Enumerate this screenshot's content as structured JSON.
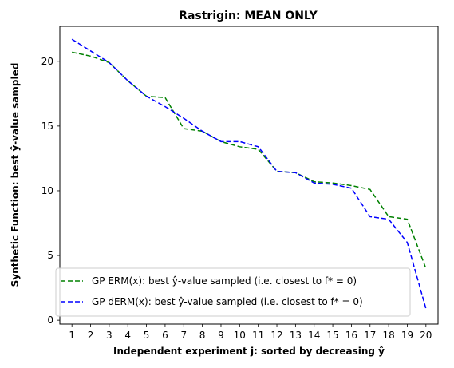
{
  "chart_data": {
    "type": "line",
    "title": "Rastrigin: MEAN ONLY",
    "xlabel": "Independent experiment j: sorted by decreasing ŷ",
    "ylabel": "Synthetic Function: best ŷ-value sampled",
    "x": [
      1,
      2,
      3,
      4,
      5,
      6,
      7,
      8,
      9,
      10,
      11,
      12,
      13,
      14,
      15,
      16,
      17,
      18,
      19,
      20
    ],
    "xlim": [
      0.35,
      20.65
    ],
    "ylim": [
      -0.3,
      22.7
    ],
    "yticks": [
      0,
      5,
      10,
      15,
      20
    ],
    "grid": false,
    "legend_position": "lower-left",
    "series": [
      {
        "name": "GP ERM(x):   best ŷ-value sampled (i.e. closest to f* = 0)",
        "color": "#008000",
        "dash": "dashed",
        "values": [
          20.7,
          20.4,
          19.9,
          18.5,
          17.3,
          17.2,
          14.8,
          14.6,
          13.8,
          13.4,
          13.2,
          11.5,
          11.4,
          10.7,
          10.6,
          10.4,
          10.1,
          8.0,
          7.8,
          4.0
        ]
      },
      {
        "name": "GP dERM(x): best ŷ-value sampled (i.e. closest to f* = 0)",
        "color": "#0000ff",
        "dash": "dashed",
        "values": [
          21.7,
          20.8,
          19.9,
          18.5,
          17.3,
          16.5,
          15.6,
          14.6,
          13.8,
          13.8,
          13.4,
          11.5,
          11.4,
          10.6,
          10.5,
          10.2,
          8.0,
          7.8,
          6.0,
          0.9
        ]
      }
    ]
  }
}
